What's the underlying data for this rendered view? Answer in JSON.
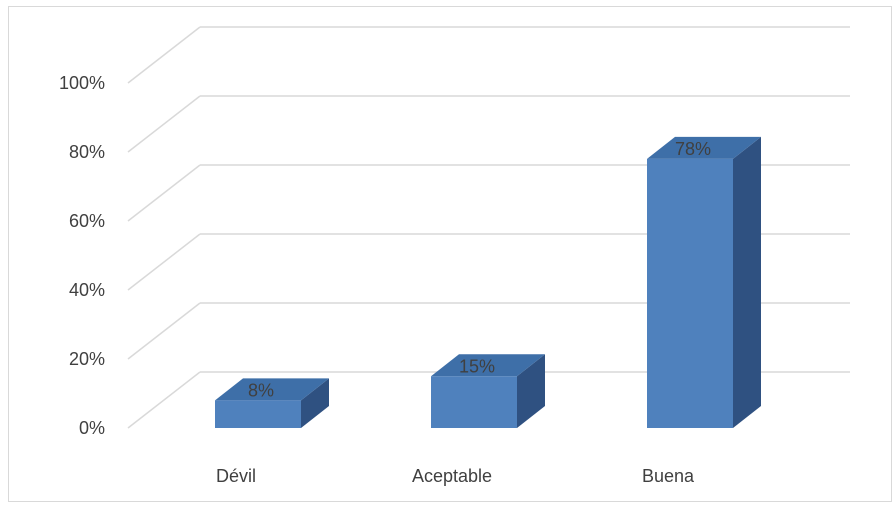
{
  "chart_data": {
    "type": "bar",
    "categories": [
      "Dévil",
      "Aceptable",
      "Buena"
    ],
    "values": [
      8,
      15,
      78
    ],
    "data_labels": [
      "8%",
      "15%",
      "78%"
    ],
    "y_tick_labels": [
      "0%",
      "20%",
      "40%",
      "60%",
      "80%",
      "100%"
    ],
    "ylim": [
      0,
      100
    ],
    "grid": true,
    "three_d": true,
    "colors": {
      "bar_front": "#4f81bd",
      "bar_top": "#3e6fa8",
      "bar_side": "#2f5181",
      "grid": "#d9d9d9",
      "text": "#404040"
    }
  }
}
